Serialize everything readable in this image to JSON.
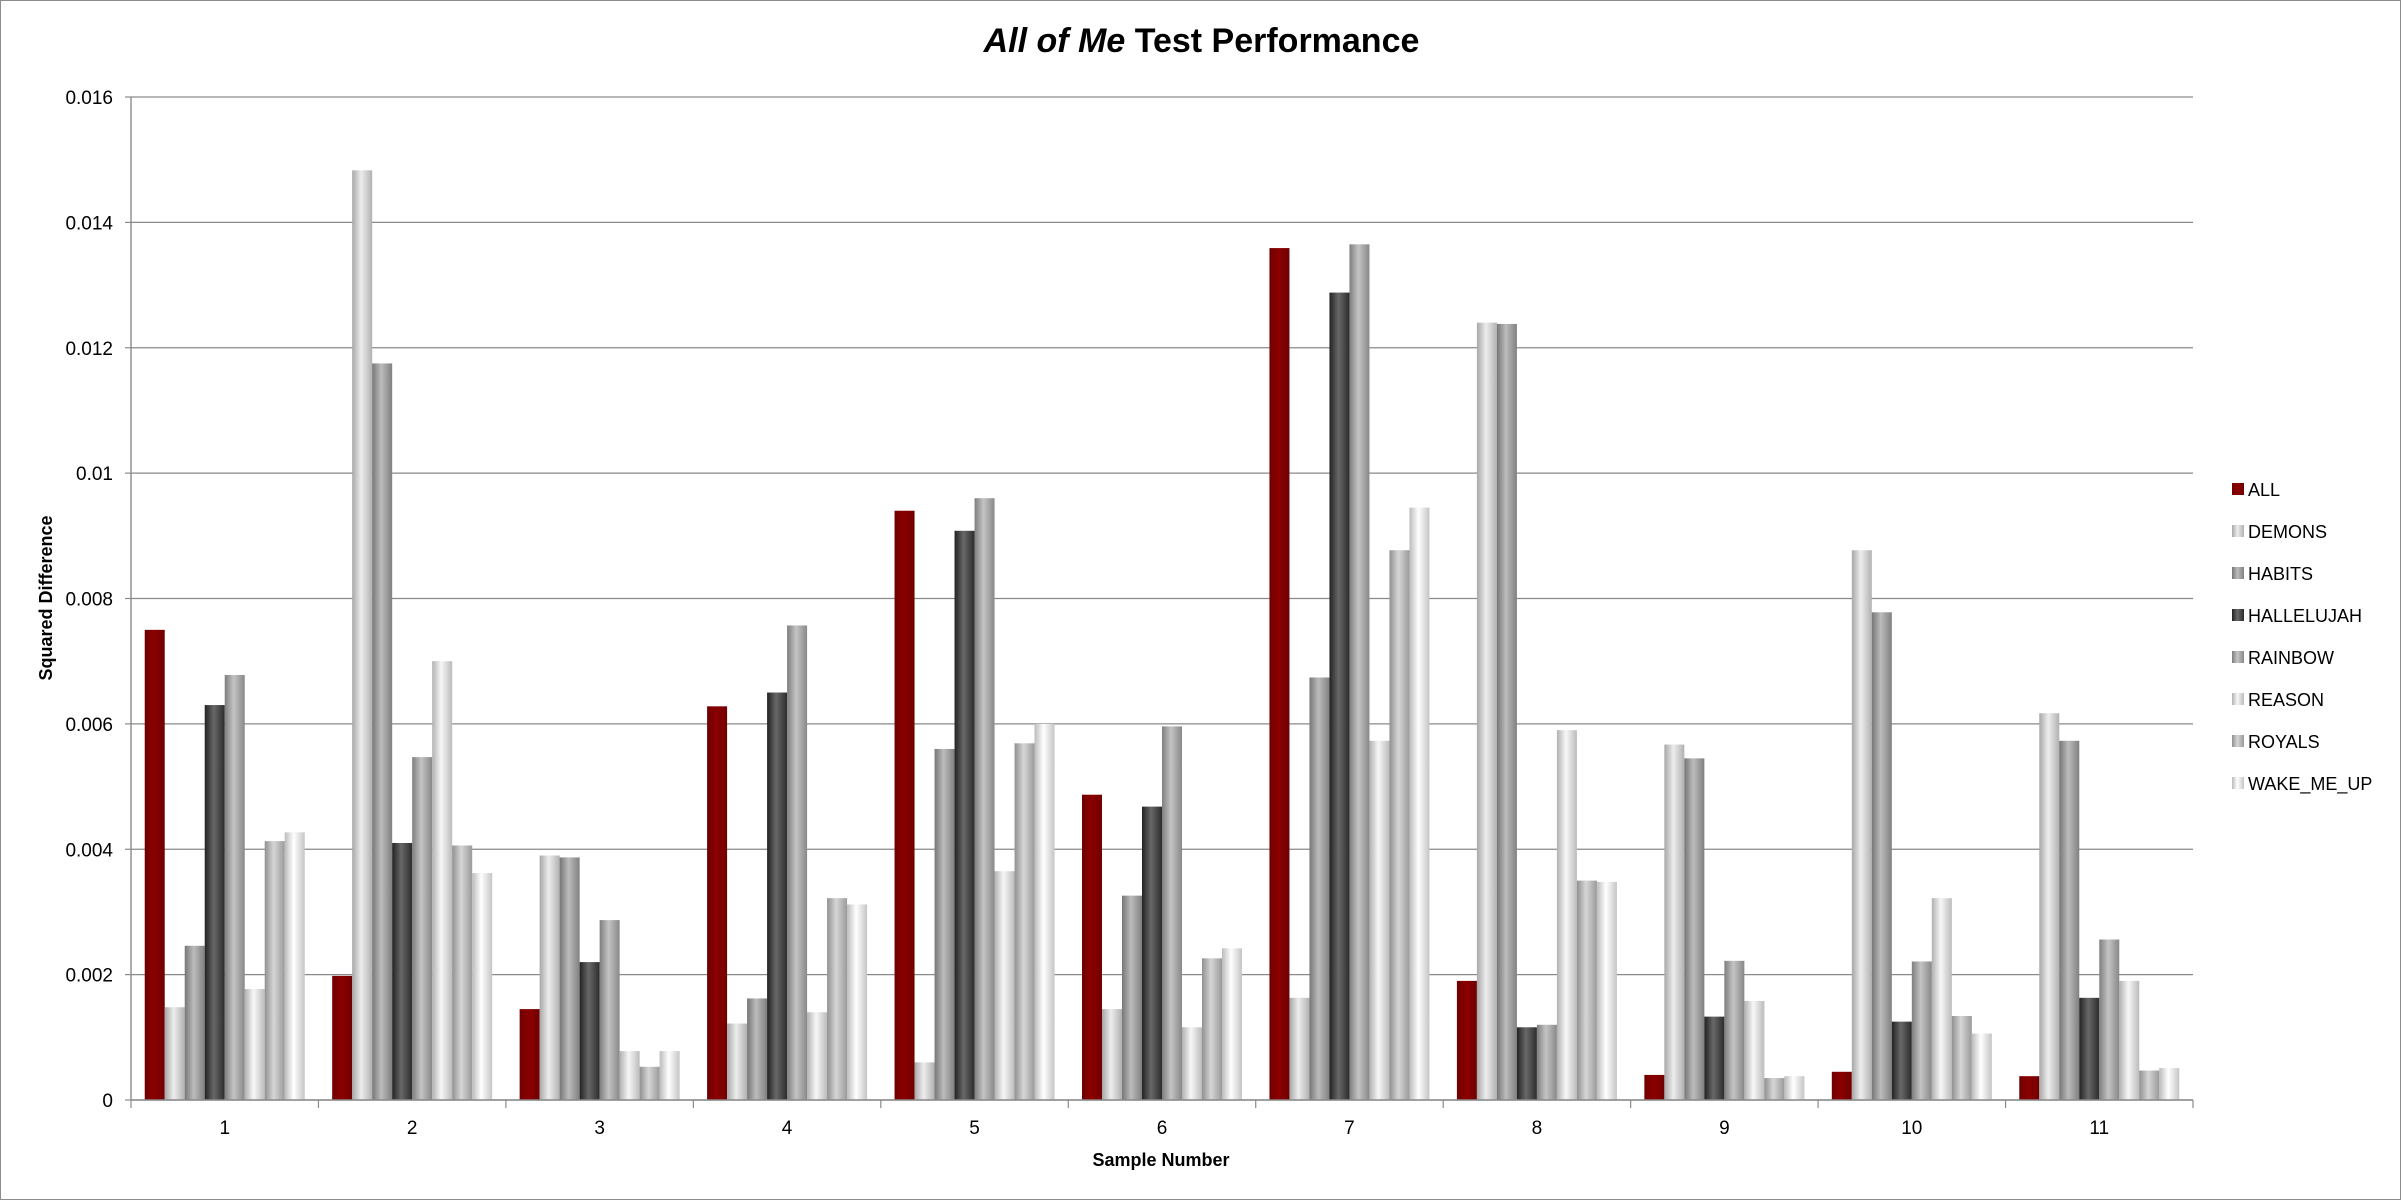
{
  "chart_data": {
    "type": "bar",
    "title_italic": "All of Me",
    "title_rest": " Test Performance",
    "xlabel": "Sample Number",
    "ylabel": "Squared Difference",
    "ylim": [
      0,
      0.016
    ],
    "yticks": [
      "0",
      "0.002",
      "0.004",
      "0.006",
      "0.008",
      "0.01",
      "0.012",
      "0.014",
      "0.016"
    ],
    "ytick_values": [
      0,
      0.002,
      0.004,
      0.006,
      0.008,
      0.01,
      0.012,
      0.014,
      0.016
    ],
    "grid": true,
    "legend_position": "right",
    "categories": [
      "1",
      "2",
      "3",
      "4",
      "5",
      "6",
      "7",
      "8",
      "9",
      "10",
      "11"
    ],
    "series": [
      {
        "name": "ALL",
        "color": "#8b0000",
        "values": [
          0.0075,
          0.00198,
          0.00145,
          0.00628,
          0.0094,
          0.00487,
          0.01359,
          0.0019,
          0.0004,
          0.00045,
          0.00038
        ]
      },
      {
        "name": "DEMONS",
        "color": "#cfcfcf",
        "values": [
          0.00148,
          0.01483,
          0.0039,
          0.00122,
          0.0006,
          0.00145,
          0.00163,
          0.0124,
          0.00567,
          0.00877,
          0.00617
        ]
      },
      {
        "name": "HABITS",
        "color": "#9e9e9e",
        "values": [
          0.00246,
          0.01175,
          0.00387,
          0.00162,
          0.0056,
          0.00326,
          0.00674,
          0.01238,
          0.00545,
          0.00778,
          0.00573
        ]
      },
      {
        "name": "HALLELUJAH",
        "color": "#4a4a4a",
        "values": [
          0.0063,
          0.0041,
          0.0022,
          0.0065,
          0.00908,
          0.00468,
          0.01288,
          0.00116,
          0.00133,
          0.00125,
          0.00163
        ]
      },
      {
        "name": "RAINBOW",
        "color": "#a6a6a6",
        "values": [
          0.00678,
          0.00547,
          0.00287,
          0.00757,
          0.0096,
          0.00596,
          0.01365,
          0.0012,
          0.00222,
          0.00221,
          0.00256
        ]
      },
      {
        "name": "REASON",
        "color": "#d9d9d9",
        "values": [
          0.00177,
          0.007,
          0.00078,
          0.0014,
          0.00365,
          0.00116,
          0.00573,
          0.0059,
          0.00158,
          0.00322,
          0.0019
        ]
      },
      {
        "name": "ROYALS",
        "color": "#b8b8b8",
        "values": [
          0.00413,
          0.00406,
          0.00053,
          0.00322,
          0.00569,
          0.00226,
          0.00877,
          0.0035,
          0.00035,
          0.00134,
          0.00047
        ]
      },
      {
        "name": "WAKE_ME_UP",
        "color": "#e3e3e3",
        "values": [
          0.00427,
          0.00362,
          0.00078,
          0.00312,
          0.006,
          0.00242,
          0.00945,
          0.00348,
          0.00038,
          0.00106,
          0.00051
        ]
      }
    ]
  }
}
